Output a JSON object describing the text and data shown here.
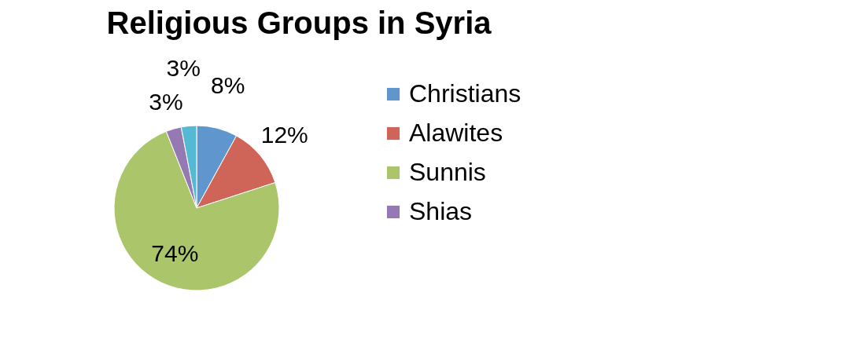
{
  "chart_data": {
    "type": "pie",
    "title": "Religious Groups in Syria",
    "categories": [
      "Christians",
      "Alawites",
      "Sunnis",
      "Shias",
      null
    ],
    "values": [
      8,
      12,
      74,
      3,
      3
    ],
    "colors": [
      "#5f96cd",
      "#cf6459",
      "#aac56a",
      "#9479b3",
      "#56b9d4"
    ],
    "value_labels": [
      "8%",
      "12%",
      "74%",
      "3%",
      "3%"
    ],
    "legend": "right"
  }
}
